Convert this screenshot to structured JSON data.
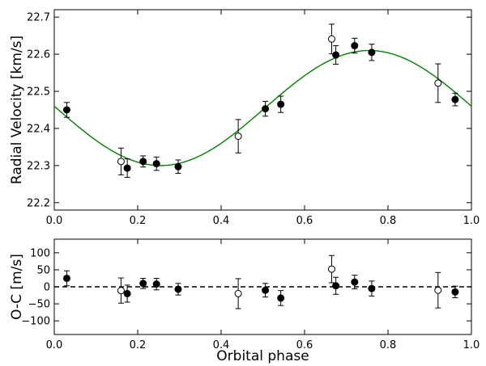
{
  "chart_data": [
    {
      "type": "scatter",
      "panel": "top",
      "title": "",
      "xlabel": "",
      "ylabel": "Radial Velocity [km/s]",
      "xlim": [
        0.0,
        1.0
      ],
      "ylim": [
        22.18,
        22.72
      ],
      "xticks": [
        "0.0",
        "0.2",
        "0.4",
        "0.6",
        "0.8",
        "1.0"
      ],
      "yticks": [
        "22.2",
        "22.3",
        "22.4",
        "22.5",
        "22.6",
        "22.7"
      ],
      "model": {
        "name": "orbit fit",
        "color": "#008000",
        "gamma": 22.455,
        "amplitude": 0.155,
        "phase_max": 0.755
      },
      "series": [
        {
          "name": "filled points",
          "marker": "filled",
          "x": [
            0.03,
            0.175,
            0.213,
            0.245,
            0.297,
            0.506,
            0.543,
            0.675,
            0.72,
            0.761,
            0.961
          ],
          "y": [
            22.45,
            22.293,
            22.311,
            22.305,
            22.297,
            22.453,
            22.465,
            22.598,
            22.623,
            22.605,
            22.478
          ],
          "err": [
            0.02,
            0.025,
            0.015,
            0.018,
            0.018,
            0.02,
            0.022,
            0.025,
            0.02,
            0.022,
            0.017
          ]
        },
        {
          "name": "open points",
          "marker": "open",
          "x": [
            0.16,
            0.441,
            0.665,
            0.92
          ],
          "y": [
            22.311,
            22.379,
            22.641,
            22.522
          ],
          "err": [
            0.036,
            0.045,
            0.04,
            0.052
          ]
        }
      ]
    },
    {
      "type": "scatter",
      "panel": "bottom",
      "title": "",
      "xlabel": "Orbital phase",
      "ylabel": "O-C [m/s]",
      "xlim": [
        0.0,
        1.0
      ],
      "ylim": [
        -140,
        140
      ],
      "xticks": [
        "0.0",
        "0.2",
        "0.4",
        "0.6",
        "0.8",
        "1.0"
      ],
      "yticks": [
        "100",
        "50",
        "0",
        "−50",
        "−100"
      ],
      "zero_line": {
        "value": 0,
        "style": "dashed"
      },
      "series": [
        {
          "name": "filled points",
          "marker": "filled",
          "x": [
            0.03,
            0.175,
            0.213,
            0.245,
            0.297,
            0.506,
            0.543,
            0.675,
            0.72,
            0.761,
            0.961
          ],
          "y": [
            25,
            -20,
            10,
            8,
            -7,
            -10,
            -33,
            3,
            14,
            -5,
            -15
          ],
          "err": [
            22,
            25,
            15,
            17,
            17,
            20,
            22,
            25,
            20,
            22,
            17
          ]
        },
        {
          "name": "open points",
          "marker": "open",
          "x": [
            0.16,
            0.441,
            0.665,
            0.92
          ],
          "y": [
            -11,
            -20,
            52,
            -10
          ],
          "err": [
            37,
            44,
            40,
            52
          ]
        }
      ]
    }
  ]
}
